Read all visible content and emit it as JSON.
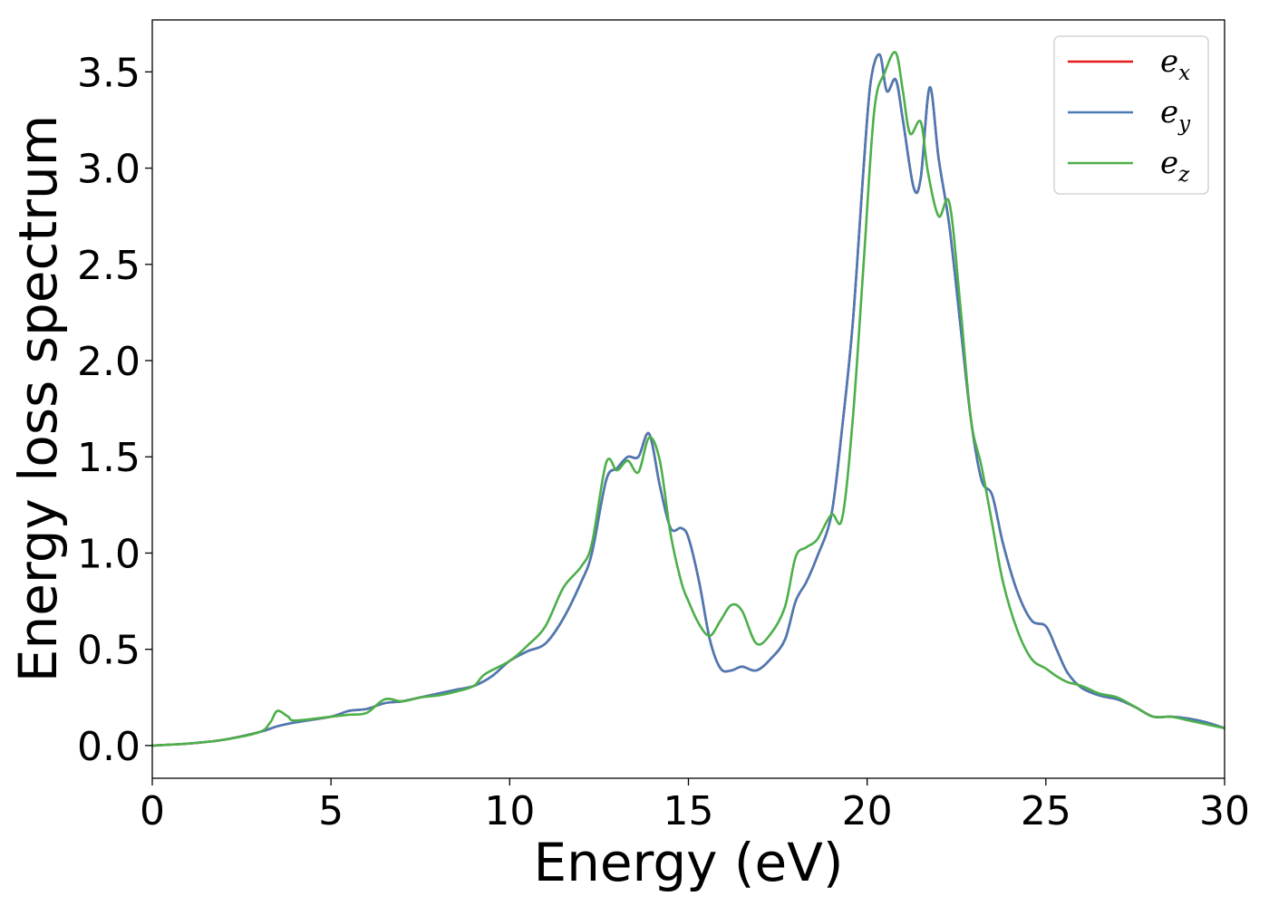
{
  "chart_data": {
    "type": "line",
    "xlabel": "Energy (eV)",
    "ylabel": "Energy loss spectrum",
    "xlim": [
      0,
      30
    ],
    "ylim": [
      -0.17,
      3.77
    ],
    "xticks": [
      0,
      5,
      10,
      15,
      20,
      25,
      30
    ],
    "xtick_labels": [
      "0",
      "5",
      "10",
      "15",
      "20",
      "25",
      "30"
    ],
    "yticks": [
      0.0,
      0.5,
      1.0,
      1.5,
      2.0,
      2.5,
      3.0,
      3.5
    ],
    "ytick_labels": [
      "0.0",
      "0.5",
      "1.0",
      "1.5",
      "2.0",
      "2.5",
      "3.0",
      "3.5"
    ],
    "grid": false,
    "legend_position": "top-right",
    "series": [
      {
        "name": "e",
        "subscript": "x",
        "color": "#e41a1c",
        "x": [
          0,
          1,
          2,
          3,
          3.5,
          4,
          5,
          5.5,
          6,
          6.5,
          7,
          7.5,
          8,
          8.5,
          9,
          9.5,
          10,
          10.5,
          11,
          11.5,
          12,
          12.3,
          12.7,
          13,
          13.3,
          13.6,
          13.9,
          14.2,
          14.5,
          14.8,
          15,
          15.3,
          15.6,
          15.9,
          16.2,
          16.5,
          16.9,
          17.3,
          17.7,
          18,
          18.3,
          18.6,
          19,
          19.3,
          19.6,
          19.9,
          20.1,
          20.35,
          20.55,
          20.8,
          21,
          21.3,
          21.5,
          21.75,
          22,
          22.3,
          22.6,
          22.9,
          23.2,
          23.5,
          23.8,
          24.2,
          24.6,
          25,
          25.3,
          25.6,
          26,
          26.5,
          27,
          27.5,
          28,
          28.5,
          29,
          29.5,
          30
        ],
        "y": [
          0,
          0.01,
          0.03,
          0.07,
          0.1,
          0.12,
          0.15,
          0.18,
          0.19,
          0.22,
          0.23,
          0.25,
          0.27,
          0.29,
          0.31,
          0.36,
          0.44,
          0.49,
          0.53,
          0.66,
          0.85,
          1.0,
          1.38,
          1.44,
          1.5,
          1.5,
          1.62,
          1.35,
          1.13,
          1.13,
          1.08,
          0.85,
          0.55,
          0.4,
          0.39,
          0.41,
          0.39,
          0.45,
          0.55,
          0.75,
          0.85,
          0.98,
          1.2,
          1.65,
          2.2,
          3.0,
          3.45,
          3.59,
          3.4,
          3.46,
          3.25,
          2.9,
          2.95,
          3.42,
          3.05,
          2.7,
          2.2,
          1.7,
          1.38,
          1.3,
          1.05,
          0.8,
          0.65,
          0.62,
          0.5,
          0.38,
          0.3,
          0.26,
          0.24,
          0.2,
          0.15,
          0.15,
          0.14,
          0.12,
          0.09
        ]
      },
      {
        "name": "e",
        "subscript": "y",
        "color": "#4a7ab5",
        "x": [
          0,
          1,
          2,
          3,
          3.5,
          4,
          5,
          5.5,
          6,
          6.5,
          7,
          7.5,
          8,
          8.5,
          9,
          9.5,
          10,
          10.5,
          11,
          11.5,
          12,
          12.3,
          12.7,
          13,
          13.3,
          13.6,
          13.9,
          14.2,
          14.5,
          14.8,
          15,
          15.3,
          15.6,
          15.9,
          16.2,
          16.5,
          16.9,
          17.3,
          17.7,
          18,
          18.3,
          18.6,
          19,
          19.3,
          19.6,
          19.9,
          20.1,
          20.35,
          20.55,
          20.8,
          21,
          21.3,
          21.5,
          21.75,
          22,
          22.3,
          22.6,
          22.9,
          23.2,
          23.5,
          23.8,
          24.2,
          24.6,
          25,
          25.3,
          25.6,
          26,
          26.5,
          27,
          27.5,
          28,
          28.5,
          29,
          29.5,
          30
        ],
        "y": [
          0,
          0.01,
          0.03,
          0.07,
          0.1,
          0.12,
          0.15,
          0.18,
          0.19,
          0.22,
          0.23,
          0.25,
          0.27,
          0.29,
          0.31,
          0.36,
          0.44,
          0.49,
          0.53,
          0.66,
          0.85,
          1.0,
          1.38,
          1.44,
          1.5,
          1.5,
          1.62,
          1.35,
          1.13,
          1.13,
          1.08,
          0.85,
          0.55,
          0.4,
          0.39,
          0.41,
          0.39,
          0.45,
          0.55,
          0.75,
          0.85,
          0.98,
          1.2,
          1.65,
          2.2,
          3.0,
          3.45,
          3.59,
          3.4,
          3.46,
          3.25,
          2.9,
          2.95,
          3.42,
          3.05,
          2.7,
          2.2,
          1.7,
          1.38,
          1.3,
          1.05,
          0.8,
          0.65,
          0.62,
          0.5,
          0.38,
          0.3,
          0.26,
          0.24,
          0.2,
          0.15,
          0.15,
          0.14,
          0.12,
          0.09
        ]
      },
      {
        "name": "e",
        "subscript": "z",
        "color": "#4daf4a",
        "x": [
          0,
          1,
          2,
          3,
          3.3,
          3.5,
          3.8,
          4,
          5,
          5.5,
          6,
          6.5,
          7,
          7.5,
          8,
          8.5,
          9,
          9.3,
          10,
          10.5,
          11,
          11.5,
          12,
          12.3,
          12.7,
          13,
          13.3,
          13.6,
          13.9,
          14.2,
          14.5,
          14.8,
          15,
          15.3,
          15.6,
          15.9,
          16.2,
          16.5,
          16.9,
          17.3,
          17.7,
          18,
          18.3,
          18.6,
          19,
          19.3,
          19.6,
          19.9,
          20.2,
          20.5,
          20.8,
          21,
          21.2,
          21.5,
          21.7,
          22,
          22.3,
          22.6,
          22.9,
          23.2,
          23.5,
          23.8,
          24.2,
          24.6,
          25,
          25.3,
          25.6,
          26,
          26.5,
          27,
          27.5,
          28,
          28.5,
          29,
          29.5,
          30
        ],
        "y": [
          0,
          0.01,
          0.03,
          0.07,
          0.12,
          0.18,
          0.15,
          0.13,
          0.15,
          0.16,
          0.17,
          0.24,
          0.23,
          0.25,
          0.26,
          0.28,
          0.31,
          0.37,
          0.44,
          0.52,
          0.62,
          0.82,
          0.93,
          1.05,
          1.47,
          1.43,
          1.48,
          1.42,
          1.6,
          1.48,
          1.1,
          0.85,
          0.75,
          0.63,
          0.57,
          0.65,
          0.73,
          0.7,
          0.53,
          0.58,
          0.72,
          0.98,
          1.03,
          1.07,
          1.2,
          1.18,
          1.7,
          2.5,
          3.3,
          3.5,
          3.6,
          3.4,
          3.18,
          3.24,
          2.98,
          2.75,
          2.82,
          2.3,
          1.7,
          1.45,
          1.15,
          0.85,
          0.6,
          0.45,
          0.4,
          0.36,
          0.33,
          0.31,
          0.27,
          0.25,
          0.2,
          0.15,
          0.15,
          0.13,
          0.11,
          0.09
        ]
      }
    ]
  }
}
